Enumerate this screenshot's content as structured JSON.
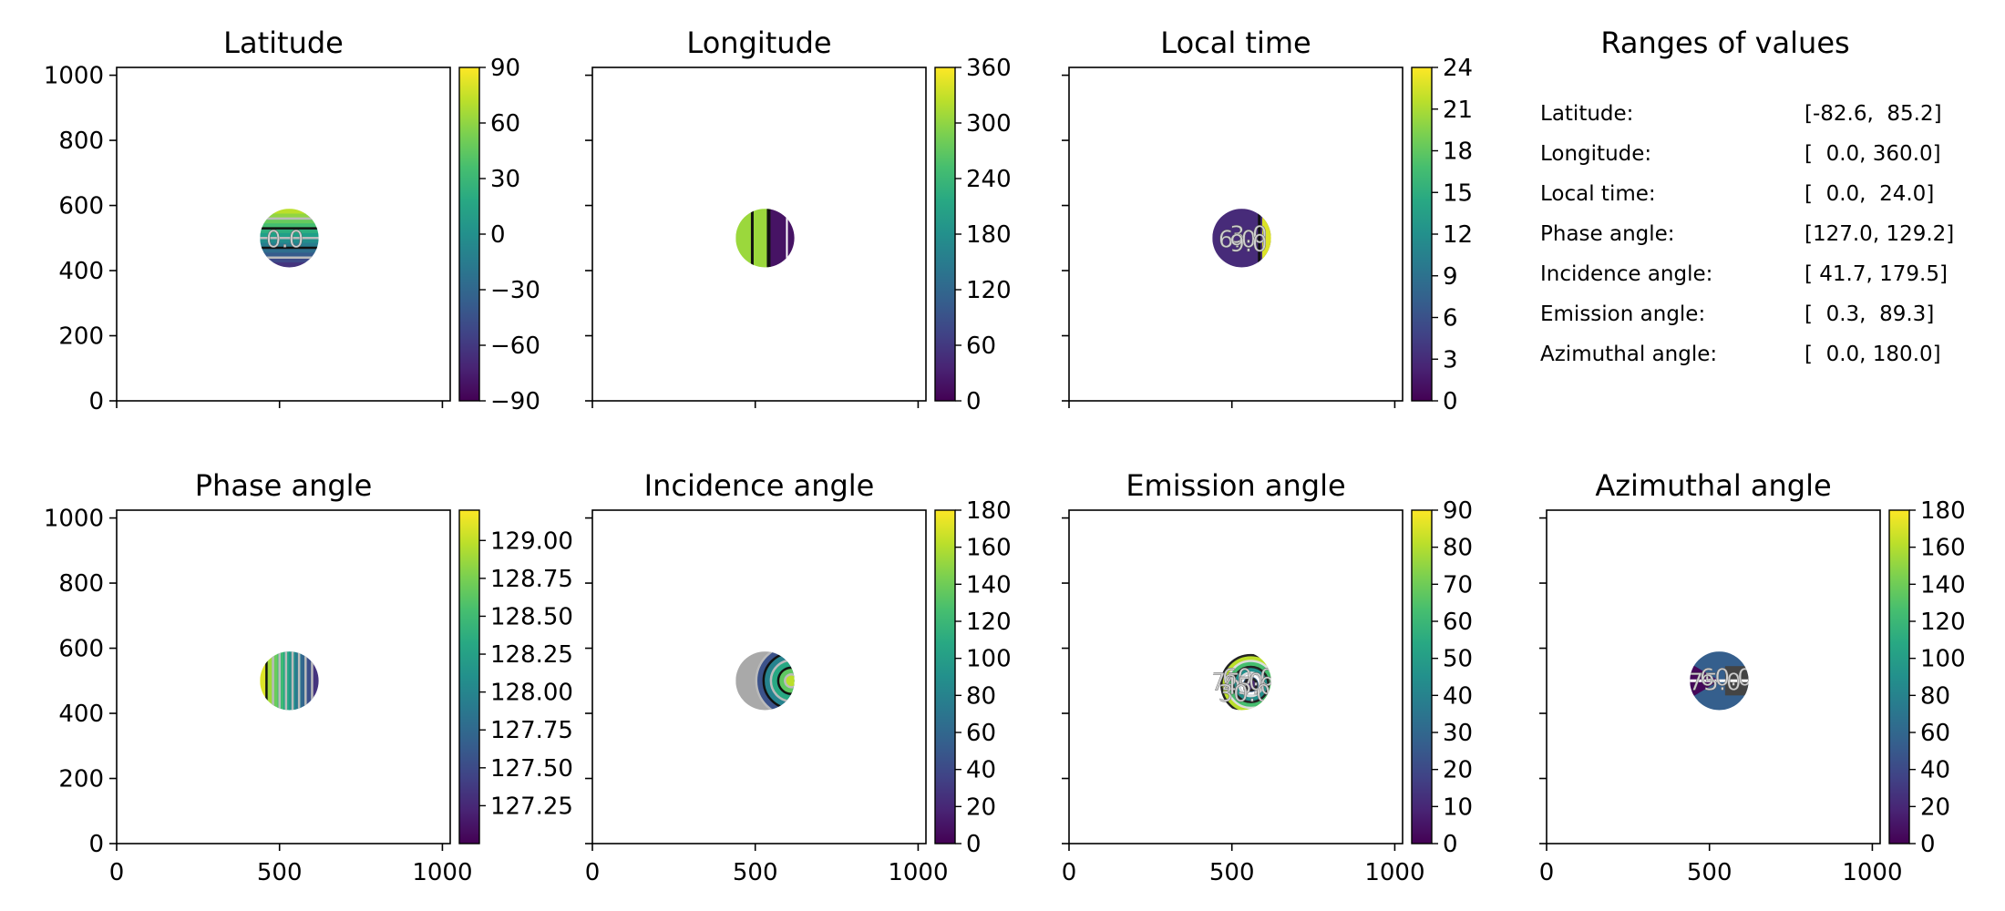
{
  "chart_data": [
    {
      "type": "heatmap",
      "title": "Latitude",
      "xlim": [
        0,
        1024
      ],
      "ylim": [
        0,
        1024
      ],
      "x_ticks": [
        0,
        500,
        1000
      ],
      "y_ticks": [
        0,
        200,
        400,
        600,
        800,
        1000
      ],
      "show_x_tick_labels": false,
      "show_y_tick_labels": true,
      "colormap": "viridis",
      "colorbar_range": [
        -90,
        90
      ],
      "colorbar_ticks": [
        "90",
        "60",
        "30",
        "0",
        "−30",
        "−60",
        "−90"
      ],
      "disk": {
        "center": [
          530,
          500
        ],
        "radius": 90
      },
      "contour_labels": [
        "0.0"
      ]
    },
    {
      "type": "heatmap",
      "title": "Longitude",
      "xlim": [
        0,
        1024
      ],
      "ylim": [
        0,
        1024
      ],
      "x_ticks": [
        0,
        500,
        1000
      ],
      "y_ticks": [
        0,
        200,
        400,
        600,
        800,
        1000
      ],
      "show_x_tick_labels": false,
      "show_y_tick_labels": false,
      "colormap": "viridis",
      "colorbar_range": [
        0,
        360
      ],
      "colorbar_ticks": [
        "360",
        "300",
        "240",
        "180",
        "120",
        "60",
        "0"
      ],
      "disk": {
        "center": [
          530,
          500
        ],
        "radius": 90
      },
      "contour_labels": []
    },
    {
      "type": "heatmap",
      "title": "Local time",
      "xlim": [
        0,
        1024
      ],
      "ylim": [
        0,
        1024
      ],
      "x_ticks": [
        0,
        500,
        1000
      ],
      "y_ticks": [
        0,
        200,
        400,
        600,
        800,
        1000
      ],
      "show_x_tick_labels": false,
      "show_y_tick_labels": false,
      "colormap": "viridis",
      "colorbar_range": [
        0,
        24
      ],
      "colorbar_ticks": [
        "24",
        "21",
        "18",
        "15",
        "12",
        "9",
        "6",
        "3",
        "0"
      ],
      "disk": {
        "center": [
          530,
          500
        ],
        "radius": 90
      },
      "contour_labels": [
        "6.0",
        "3.0",
        "9.0"
      ]
    },
    {
      "type": "heatmap",
      "title": "Phase angle",
      "xlim": [
        0,
        1024
      ],
      "ylim": [
        0,
        1024
      ],
      "x_ticks": [
        0,
        500,
        1000
      ],
      "y_ticks": [
        0,
        200,
        400,
        600,
        800,
        1000
      ],
      "show_x_tick_labels": true,
      "show_y_tick_labels": true,
      "colormap": "viridis",
      "colorbar_range": [
        127.0,
        129.2
      ],
      "colorbar_ticks": [
        "129.00",
        "128.75",
        "128.50",
        "128.25",
        "128.00",
        "127.75",
        "127.50",
        "127.25"
      ],
      "colorbar_tick_values": [
        129.0,
        128.75,
        128.5,
        128.25,
        128.0,
        127.75,
        127.5,
        127.25
      ],
      "disk": {
        "center": [
          530,
          500
        ],
        "radius": 90
      },
      "contour_labels": []
    },
    {
      "type": "heatmap",
      "title": "Incidence angle",
      "xlim": [
        0,
        1024
      ],
      "ylim": [
        0,
        1024
      ],
      "x_ticks": [
        0,
        500,
        1000
      ],
      "y_ticks": [
        0,
        200,
        400,
        600,
        800,
        1000
      ],
      "show_x_tick_labels": true,
      "show_y_tick_labels": false,
      "colormap": "viridis",
      "colorbar_range": [
        0,
        180
      ],
      "colorbar_ticks": [
        "180",
        "160",
        "140",
        "120",
        "100",
        "80",
        "60",
        "40",
        "20",
        "0"
      ],
      "disk": {
        "center": [
          530,
          500
        ],
        "radius": 90
      },
      "contour_labels": []
    },
    {
      "type": "heatmap",
      "title": "Emission angle",
      "xlim": [
        0,
        1024
      ],
      "ylim": [
        0,
        1024
      ],
      "x_ticks": [
        0,
        500,
        1000
      ],
      "y_ticks": [
        0,
        200,
        400,
        600,
        800,
        1000
      ],
      "show_x_tick_labels": true,
      "show_y_tick_labels": false,
      "colormap": "viridis",
      "colorbar_range": [
        0,
        90
      ],
      "colorbar_ticks": [
        "90",
        "80",
        "70",
        "60",
        "50",
        "40",
        "30",
        "20",
        "10",
        "0"
      ],
      "disk": {
        "center": [
          530,
          500
        ],
        "radius": 90
      },
      "contour_labels": [
        "75.0",
        "60.0",
        "45.0",
        "30.0"
      ]
    },
    {
      "type": "heatmap",
      "title": "Azimuthal angle",
      "xlim": [
        0,
        1024
      ],
      "ylim": [
        0,
        1024
      ],
      "x_ticks": [
        0,
        500,
        1000
      ],
      "y_ticks": [
        0,
        200,
        400,
        600,
        800,
        1000
      ],
      "show_x_tick_labels": true,
      "show_y_tick_labels": false,
      "colormap": "viridis",
      "colorbar_range": [
        0,
        180
      ],
      "colorbar_ticks": [
        "180",
        "160",
        "140",
        "120",
        "100",
        "80",
        "60",
        "40",
        "20",
        "0"
      ],
      "disk": {
        "center": [
          530,
          500
        ],
        "radius": 90
      },
      "contour_labels": [
        "75.0",
        "60.0"
      ]
    },
    {
      "type": "table",
      "title": "Ranges of values",
      "rows": [
        {
          "label": "Latitude:",
          "range": "[-82.6,  85.2]"
        },
        {
          "label": "Longitude:",
          "range": "[  0.0, 360.0]"
        },
        {
          "label": "Local time:",
          "range": "[  0.0,  24.0]"
        },
        {
          "label": "Phase angle:",
          "range": "[127.0, 129.2]"
        },
        {
          "label": "Incidence angle:",
          "range": "[ 41.7, 179.5]"
        },
        {
          "label": "Emission angle:",
          "range": "[  0.3,  89.3]"
        },
        {
          "label": "Azimuthal angle:",
          "range": "[  0.0, 180.0]"
        }
      ]
    }
  ]
}
